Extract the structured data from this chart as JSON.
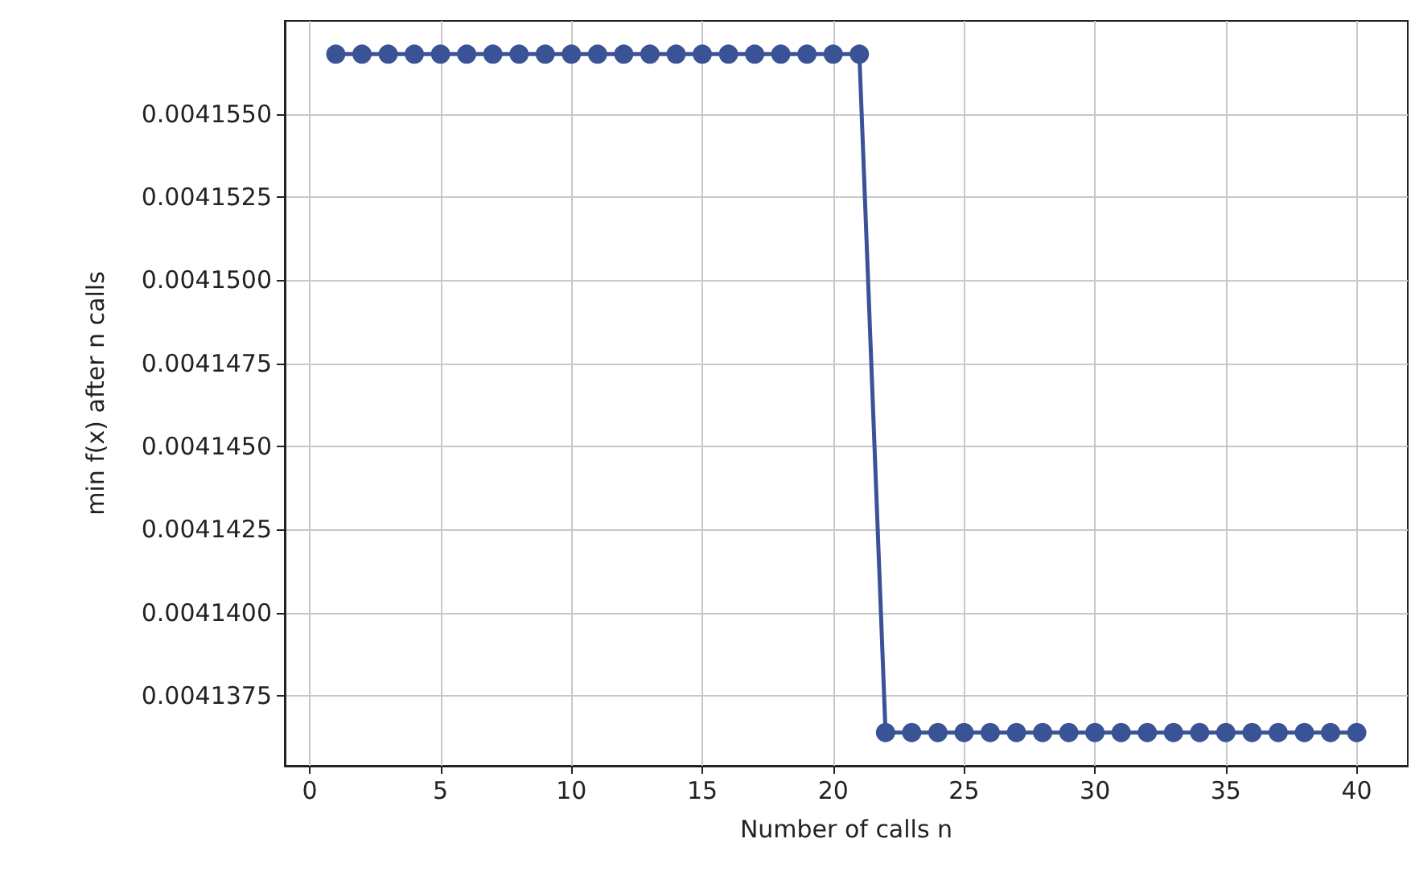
{
  "chart_data": {
    "type": "line",
    "xlabel": "Number of calls n",
    "ylabel": "min f(x) after n calls",
    "x": [
      1,
      2,
      3,
      4,
      5,
      6,
      7,
      8,
      9,
      10,
      11,
      12,
      13,
      14,
      15,
      16,
      17,
      18,
      19,
      20,
      21,
      22,
      23,
      24,
      25,
      26,
      27,
      28,
      29,
      30,
      31,
      32,
      33,
      34,
      35,
      36,
      37,
      38,
      39,
      40
    ],
    "series": [
      {
        "color": "#3a5396",
        "values": [
          0.0041568,
          0.0041568,
          0.0041568,
          0.0041568,
          0.0041568,
          0.0041568,
          0.0041568,
          0.0041568,
          0.0041568,
          0.0041568,
          0.0041568,
          0.0041568,
          0.0041568,
          0.0041568,
          0.0041568,
          0.0041568,
          0.0041568,
          0.0041568,
          0.0041568,
          0.0041568,
          0.0041568,
          0.0041364,
          0.0041364,
          0.0041364,
          0.0041364,
          0.0041364,
          0.0041364,
          0.0041364,
          0.0041364,
          0.0041364,
          0.0041364,
          0.0041364,
          0.0041364,
          0.0041364,
          0.0041364,
          0.0041364,
          0.0041364,
          0.0041364,
          0.0041364,
          0.0041364
        ]
      }
    ],
    "xlim": [
      -0.95,
      41.95
    ],
    "xticks": [
      0,
      5,
      10,
      15,
      20,
      25,
      30,
      35,
      40
    ],
    "ylim": [
      0.0041354,
      0.0041578
    ],
    "yticks": [
      {
        "value": 0.0041375,
        "label": "0.0041375"
      },
      {
        "value": 0.00414,
        "label": "0.0041400"
      },
      {
        "value": 0.0041425,
        "label": "0.0041425"
      },
      {
        "value": 0.004145,
        "label": "0.0041450"
      },
      {
        "value": 0.0041475,
        "label": "0.0041475"
      },
      {
        "value": 0.00415,
        "label": "0.0041500"
      },
      {
        "value": 0.0041525,
        "label": "0.0041525"
      },
      {
        "value": 0.004155,
        "label": "0.0041550"
      }
    ],
    "grid": true,
    "marker": "circle",
    "line_style": "solid"
  }
}
